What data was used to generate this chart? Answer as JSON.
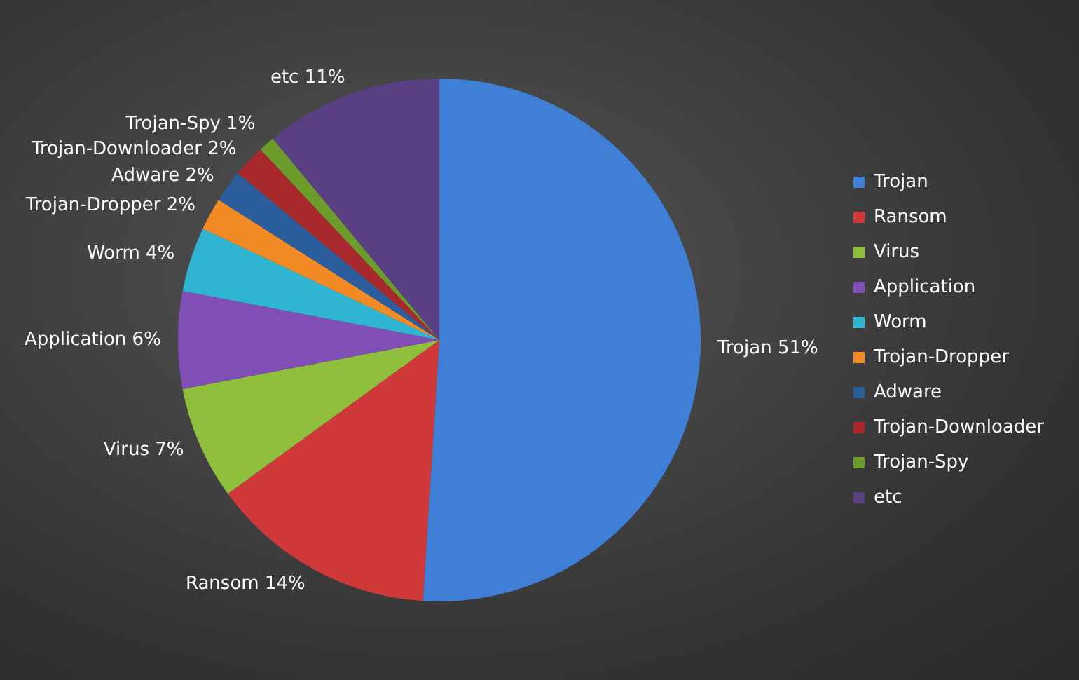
{
  "chart_data": {
    "type": "pie",
    "categories": [
      "Trojan",
      "Ransom",
      "Virus",
      "Application",
      "Worm",
      "Trojan-Dropper",
      "Adware",
      "Trojan-Downloader",
      "Trojan-Spy",
      "etc"
    ],
    "values": [
      51,
      14,
      7,
      6,
      4,
      2,
      2,
      2,
      1,
      11
    ],
    "value_labels": [
      "51%",
      "14%",
      "7%",
      "6%",
      "4%",
      "2%",
      "2%",
      "2%",
      "1%",
      "11%"
    ],
    "colors": [
      "#3f7fd6",
      "#d0393a",
      "#8fbf3c",
      "#7f4fb5",
      "#2fb4d2",
      "#f28a25",
      "#2c5e9e",
      "#a8292b",
      "#6b9c2c",
      "#5a3f82"
    ],
    "legend": "right"
  }
}
